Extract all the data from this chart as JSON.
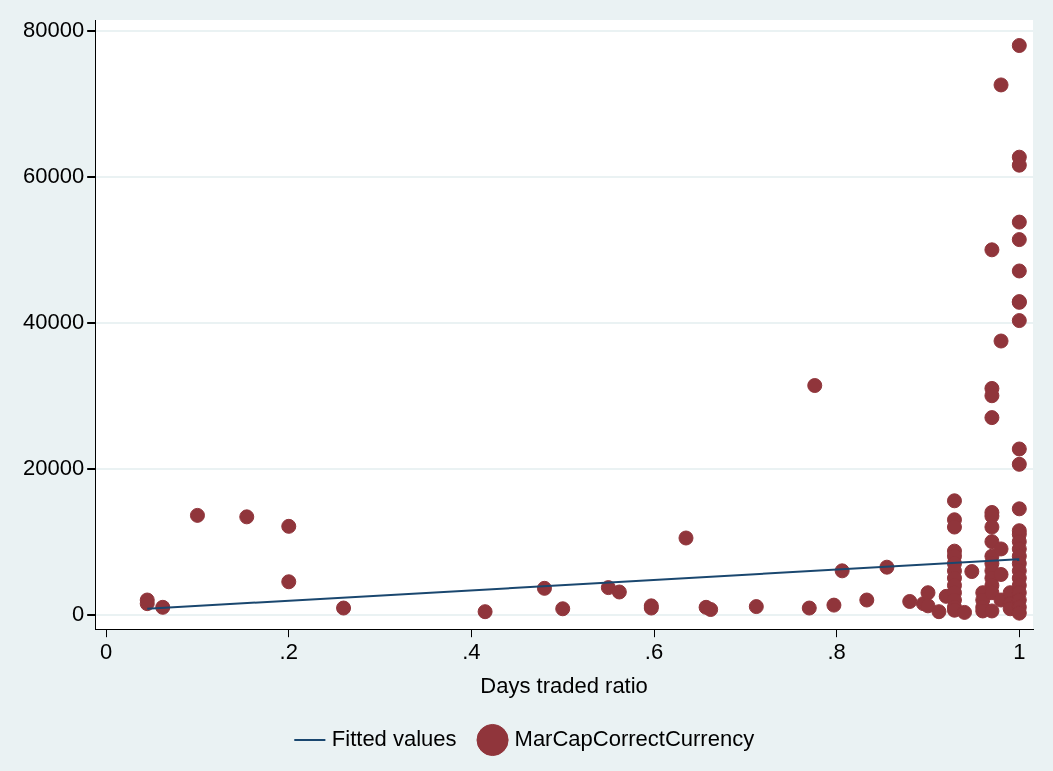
{
  "chart_data": {
    "type": "scatter",
    "xlabel": "Days traded ratio",
    "xlim": [
      -0.012,
      1.015
    ],
    "ylim": [
      -2000,
      81500
    ],
    "xticks": [
      0,
      {
        "value": 0.2,
        "label": ".2"
      },
      {
        "value": 0.4,
        "label": ".4"
      },
      {
        "value": 0.6,
        "label": ".6"
      },
      {
        "value": 0.8,
        "label": ".8"
      },
      1
    ],
    "yticks": [
      0,
      20000,
      40000,
      60000,
      80000
    ],
    "grid": "y",
    "legend": "bottom",
    "series": [
      {
        "name": "Fitted values",
        "type": "line",
        "color": "#1a476f",
        "x": [
          0.045,
          1
        ],
        "values": [
          800,
          7600
        ]
      },
      {
        "name": "MarCapCorrectCurrency",
        "type": "scatter",
        "color": "#90353b",
        "marker": "circle",
        "x": [
          0.045,
          0.045,
          0.062,
          0.1,
          0.154,
          0.2,
          0.2,
          0.26,
          0.415,
          0.48,
          0.5,
          0.55,
          0.562,
          0.597,
          0.597,
          0.635,
          0.657,
          0.662,
          0.712,
          0.77,
          0.776,
          0.797,
          0.806,
          0.833,
          0.855,
          0.88,
          0.895,
          0.9,
          0.9,
          0.912,
          0.92,
          0.929,
          0.929,
          0.929,
          0.929,
          0.929,
          0.929,
          0.929,
          0.929,
          0.929,
          0.929,
          0.929,
          0.929,
          0.929,
          0.94,
          0.948,
          0.96,
          0.96,
          0.96,
          0.96,
          0.97,
          0.97,
          0.97,
          0.97,
          0.97,
          0.97,
          0.97,
          0.97,
          0.97,
          0.97,
          0.97,
          0.97,
          0.97,
          0.97,
          0.97,
          0.98,
          0.98,
          0.98,
          0.98,
          0.98,
          0.99,
          0.99,
          0.99,
          1,
          1,
          1,
          1,
          1,
          1,
          1,
          1,
          1,
          1,
          1,
          1,
          1,
          1,
          1,
          1,
          1,
          1,
          1,
          1,
          1,
          1,
          1,
          1,
          1
        ],
        "values": [
          2000,
          1500,
          1000,
          13600,
          13400,
          12100,
          4500,
          900,
          400,
          3600,
          800,
          3700,
          3100,
          1200,
          900,
          10500,
          1000,
          700,
          1100,
          900,
          31400,
          1300,
          6000,
          2000,
          6500,
          1800,
          1500,
          3000,
          1200,
          400,
          2500,
          15600,
          13000,
          12000,
          8700,
          8000,
          7000,
          6000,
          5000,
          4000,
          3000,
          2000,
          1000,
          600,
          300,
          5900,
          3000,
          2000,
          1000,
          500,
          50000,
          31000,
          30000,
          27000,
          14000,
          13500,
          12000,
          10000,
          8000,
          7000,
          6000,
          5000,
          4000,
          3000,
          500,
          72600,
          37500,
          9000,
          5500,
          2000,
          3000,
          1500,
          800,
          78000,
          62700,
          61600,
          53800,
          51400,
          47100,
          42900,
          42800,
          40300,
          22700,
          20600,
          14500,
          11500,
          11000,
          10000,
          9000,
          8000,
          7000,
          6000,
          5000,
          4000,
          3000,
          2000,
          1000,
          200
        ]
      }
    ]
  }
}
